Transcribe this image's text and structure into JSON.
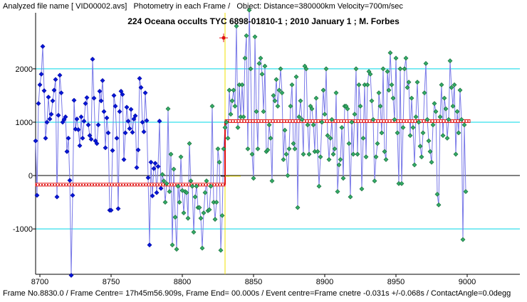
{
  "header": {
    "file_label": "Analyzed file name [ VID00002.avs]",
    "mode_label": "Photometry in each Frame /",
    "object_label": "Object: Distance=380000km Velocity=700m/sec"
  },
  "footer": {
    "status": "Frame No.8830.0 / Frame Centre= 17h45m56.909s,  Frame End= 00.000s / Event centre=Frame cnetre -0.031s +/-0.068s / ContactAngle=0.0degg"
  },
  "colors": {
    "background": "#ffffff",
    "gridline": "#00d8e8",
    "axis": "#000000",
    "series_before": "#0018d8",
    "series_after": "#33aa66",
    "connect_line": "#7a7ae8",
    "fit_line": "#e01010",
    "event_line": "#f0e000",
    "marker": "#e01010"
  },
  "chart_data": {
    "type": "scatter",
    "title": "224 Oceana occults TYC 6898-01810-1 ; 2010 January 1 ; M. Forbes",
    "xlabel": "",
    "ylabel": "",
    "xlim": [
      8697,
      9037
    ],
    "ylim": [
      -1850,
      3050
    ],
    "x_ticks": [
      8700,
      8750,
      8800,
      8850,
      8900,
      8950,
      9000
    ],
    "y_ticks": [
      -1000,
      0,
      1000,
      2000
    ],
    "grid_y": true,
    "event_frame": 8830,
    "event_marker": {
      "x": 8830,
      "y": 2580
    },
    "fit": [
      {
        "x0": 8697,
        "x1": 8830,
        "y": -170
      },
      {
        "x0": 8830,
        "x1": 9002,
        "y": 1020
      }
    ],
    "series": [
      {
        "name": "",
        "x0": 8697,
        "dx": 1,
        "y": [
          650,
          -370,
          1350,
          1700,
          1900,
          2420,
          1590,
          700,
          1000,
          1470,
          1060,
          1150,
          1400,
          1600,
          1800,
          -400,
          1130,
          1880,
          1550,
          1000,
          1050,
          1100,
          450,
          700,
          -90,
          -1870,
          -370,
          1410,
          870,
          1060,
          860,
          560,
          1100,
          700,
          1020,
          1350,
          1460,
          950,
          750,
          680,
          2180,
          1450,
          650,
          600,
          950,
          1580,
          1400,
          1780,
          1200,
          520,
          1080,
          800,
          -650,
          -650,
          470,
          1500,
          1300,
          700,
          -620,
          1200,
          1580,
          1520,
          300,
          800,
          1280,
          1020,
          880,
          1240,
          810,
          1060,
          1120,
          150,
          480,
          1820,
          1650,
          1000,
          820,
          1550,
          1030,
          -40,
          -1300,
          250,
          -380,
          130,
          230,
          -320,
          170,
          1020,
          -240
        ]
      },
      {
        "name": "",
        "x0": 8786,
        "dx": 1,
        "y": [
          20,
          -100,
          -500,
          -150,
          1250,
          -300,
          400,
          -1300,
          120,
          -780,
          -1380,
          -200,
          -500,
          350,
          -280,
          -700,
          -300,
          -320,
          -800,
          600,
          -100,
          -200,
          -1060,
          -400,
          -200,
          -600,
          -600,
          -800,
          -1360,
          -700,
          -320,
          -100,
          -660,
          -640,
          -200,
          1300,
          -500,
          -820,
          -500,
          500,
          250,
          -1400,
          -750,
          500
        ]
      },
      {
        "name": "",
        "x0": 8830,
        "dx": 1,
        "y": [
          900,
          1000,
          700,
          1600,
          1150,
          1400,
          1600,
          1300,
          2800,
          900,
          1700,
          1100,
          1700,
          1100,
          2200,
          2620,
          500,
          3100,
          2000,
          400,
          -50,
          2600,
          1200,
          500,
          2100,
          2200,
          1900,
          1200,
          2050,
          450,
          480,
          950,
          700,
          -100,
          1500,
          1400,
          1800,
          1300,
          1600,
          2000,
          1550,
          300,
          850,
          400,
          0,
          500,
          1300,
          1700,
          600,
          500,
          1850,
          -600,
          1100,
          1400,
          1050,
          400,
          2050,
          2000,
          950,
          400,
          1300,
          1250,
          950,
          450,
          1450,
          450,
          -200,
          350,
          1000,
          1600,
          1150,
          2000,
          750,
          300,
          700,
          1050,
          400,
          500,
          1550,
          -300,
          200,
          300,
          900,
          -50,
          1300,
          1300,
          1250,
          600,
          -400,
          1000,
          400,
          1150,
          2000,
          400,
          1700,
          1300,
          -250,
          700,
          1700,
          350,
          1700,
          1950,
          1900,
          1400,
          1050,
          -100,
          350,
          600,
          1550,
          1300,
          800,
          2000,
          450,
          300,
          1950,
          1600,
          2300,
          1700,
          1450,
          1050,
          2200,
          800,
          -150,
          2000,
          -150,
          900,
          2000,
          2200,
          1650,
          1750,
          750,
          1450,
          900,
          200,
          1100,
          1750,
          1000,
          550,
          350,
          800,
          1550,
          2100,
          1050,
          650,
          450,
          250,
          950,
          1350,
          1200,
          -350,
          -550,
          1100,
          1700,
          750,
          1450,
          1250,
          700,
          1050,
          2150,
          1650,
          1300,
          1700,
          400,
          1200,
          800,
          1600,
          1050,
          -1200,
          950,
          -300
        ]
      }
    ]
  }
}
